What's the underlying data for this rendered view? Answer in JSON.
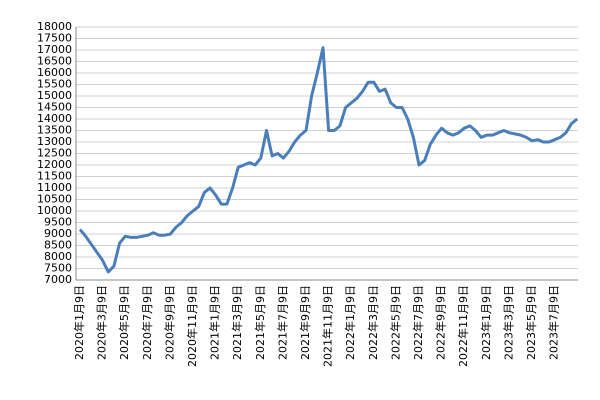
{
  "chart_data": {
    "type": "line",
    "categories": [
      "2020年1月9日",
      null,
      null,
      null,
      "2020年3月9日",
      null,
      null,
      null,
      "2020年5月9日",
      null,
      null,
      null,
      "2020年7月9日",
      null,
      null,
      null,
      "2020年9月9日",
      null,
      null,
      null,
      "2020年11月9日",
      null,
      null,
      null,
      "2021年1月9日",
      null,
      null,
      null,
      "2021年3月9日",
      null,
      null,
      null,
      "2021年5月9日",
      null,
      null,
      null,
      "2021年7月9日",
      null,
      null,
      null,
      "2021年9月9日",
      null,
      null,
      null,
      "2021年11月9日",
      null,
      null,
      null,
      "2022年1月9日",
      null,
      null,
      null,
      "2022年3月9日",
      null,
      null,
      null,
      "2022年5月9日",
      null,
      null,
      null,
      "2022年7月9日",
      null,
      null,
      null,
      "2022年9月9日",
      null,
      null,
      null,
      "2022年11月9日",
      null,
      null,
      null,
      "2023年1月9日",
      null,
      null,
      null,
      "2023年3月9日",
      null,
      null,
      null,
      "2023年5月9日",
      null,
      null,
      null,
      "2023年7月9日",
      null,
      null,
      null,
      null
    ],
    "series": [
      {
        "color": "#4a7ebb",
        "values": [
          9200,
          8900,
          8550,
          8200,
          7850,
          7350,
          7600,
          8600,
          8900,
          8850,
          8850,
          8900,
          8950,
          9050,
          8950,
          8950,
          9000,
          9300,
          9500,
          9800,
          10000,
          10200,
          10800,
          11000,
          10700,
          10300,
          10300,
          11000,
          11900,
          12000,
          12100,
          12000,
          12300,
          13500,
          12400,
          12500,
          12300,
          12600,
          13000,
          13300,
          13500,
          15000,
          16000,
          17100,
          13500,
          13500,
          13700,
          14500,
          14700,
          14900,
          15200,
          15600,
          15600,
          15200,
          15300,
          14700,
          14500,
          14500,
          14000,
          13200,
          12000,
          12200,
          12900,
          13300,
          13600,
          13400,
          13300,
          13400,
          13600,
          13700,
          13500,
          13200,
          13300,
          13300,
          13400,
          13500,
          13400,
          13350,
          13300,
          13200,
          13050,
          13100,
          13000,
          13000,
          13100,
          13200,
          13400,
          13800,
          14000
        ]
      }
    ],
    "ylim": [
      7000,
      18000
    ],
    "yticks": [
      7000,
      7500,
      8000,
      8500,
      9000,
      9500,
      10000,
      10500,
      11000,
      11500,
      12000,
      12500,
      13000,
      13500,
      14000,
      14500,
      15000,
      15500,
      16000,
      16500,
      17000,
      17500,
      18000
    ],
    "grid": true
  }
}
